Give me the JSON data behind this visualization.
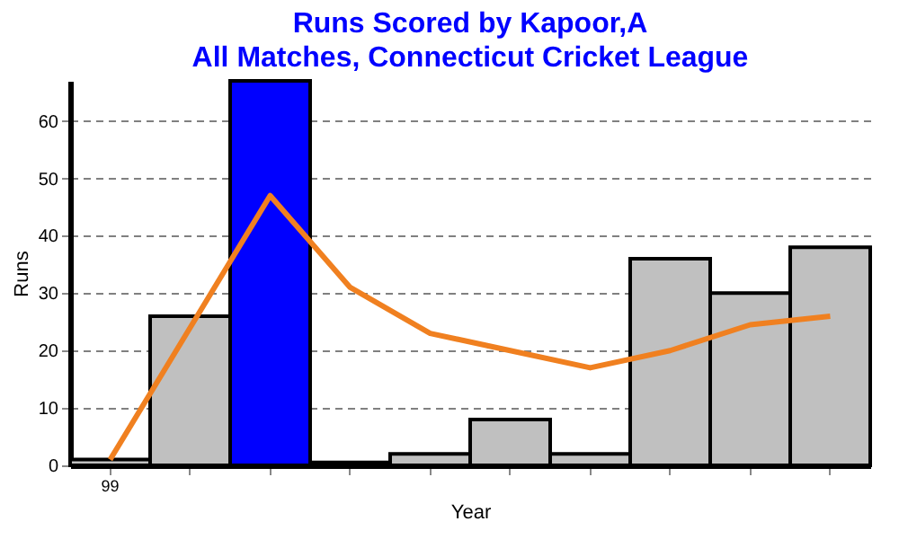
{
  "chart_data": {
    "type": "bar",
    "title": "Runs Scored by Kapoor,A",
    "subtitle": "All Matches, Connecticut Cricket League",
    "xlabel": "Year",
    "ylabel": "Runs",
    "categories": [
      "99",
      null,
      null,
      null,
      null,
      null,
      null,
      null,
      null,
      null
    ],
    "series": [
      {
        "colors": [
          "#c0c0c0",
          "#c0c0c0",
          "#0000ff",
          "#003300",
          "#c0c0c0",
          "#c0c0c0",
          "#c0c0c0",
          "#c0c0c0",
          "#c0c0c0",
          "#c0c0c0"
        ],
        "values": [
          1,
          26,
          67,
          0.5,
          2,
          8,
          2,
          36,
          30,
          38
        ]
      },
      {
        "type": "line",
        "color": "#f08020",
        "values": [
          1,
          24,
          47,
          31,
          23,
          20,
          17,
          20,
          24.5,
          26
        ]
      }
    ],
    "ylim": [
      0,
      67
    ],
    "yticks": [
      0,
      10,
      20,
      30,
      40,
      50,
      60
    ],
    "grid": "y"
  }
}
